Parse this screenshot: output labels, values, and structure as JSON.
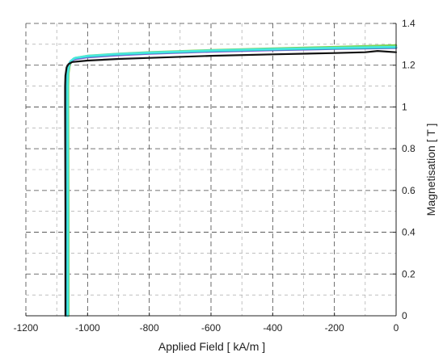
{
  "chart_data": {
    "type": "line",
    "xlabel": "Applied Field [ kA/m ]",
    "ylabel": "Magnetisation [ T ]",
    "xlim": [
      -1200,
      0
    ],
    "ylim": [
      0,
      1.4
    ],
    "x_ticks": [
      "-1200",
      "-1000",
      "-800",
      "-600",
      "-400",
      "-200",
      "0"
    ],
    "y_ticks": [
      "0",
      "0.2",
      "0.4",
      "0.6",
      "0.8",
      "1",
      "1.2",
      "1.4"
    ],
    "y_axis_side": "right",
    "grid": "dashed",
    "series": [
      {
        "color": "#79d357",
        "x": [
          -1062,
          -1062,
          -1063,
          -1063,
          -1062,
          -1058,
          -1052,
          -1040,
          -1000,
          -900,
          -800,
          -600,
          -400,
          -200,
          0
        ],
        "y": [
          0,
          0.5,
          1.0,
          1.1,
          1.16,
          1.2,
          1.22,
          1.235,
          1.245,
          1.255,
          1.262,
          1.272,
          1.28,
          1.287,
          1.295
        ]
      },
      {
        "color": "#8a5fd6",
        "x": [
          -1065,
          -1065,
          -1066,
          -1066,
          -1065,
          -1061,
          -1055,
          -1043,
          -1000,
          -900,
          -800,
          -600,
          -400,
          -200,
          0
        ],
        "y": [
          0,
          0.5,
          1.0,
          1.1,
          1.155,
          1.195,
          1.215,
          1.228,
          1.238,
          1.248,
          1.255,
          1.265,
          1.272,
          1.278,
          1.283
        ]
      },
      {
        "color": "#1aa3b8",
        "x": [
          -1066,
          -1066,
          -1067,
          -1067,
          -1066,
          -1062,
          -1056,
          -1044,
          -1000,
          -900,
          -800,
          -600,
          -400,
          -200,
          0
        ],
        "y": [
          0,
          0.5,
          1.0,
          1.1,
          1.158,
          1.198,
          1.218,
          1.232,
          1.242,
          1.252,
          1.258,
          1.268,
          1.275,
          1.28,
          1.285
        ]
      },
      {
        "color": "#48e8e0",
        "x": [
          -1064,
          -1064,
          -1065,
          -1065,
          -1064,
          -1060,
          -1054,
          -1042,
          -1000,
          -900,
          -800,
          -600,
          -400,
          -200,
          0
        ],
        "y": [
          0,
          0.5,
          1.0,
          1.1,
          1.16,
          1.2,
          1.22,
          1.234,
          1.244,
          1.254,
          1.26,
          1.27,
          1.277,
          1.283,
          1.288
        ]
      },
      {
        "color": "#111111",
        "x": [
          -1072,
          -1072,
          -1073,
          -1073,
          -1072,
          -1068,
          -1062,
          -1050,
          -1000,
          -900,
          -800,
          -600,
          -400,
          -200,
          -100,
          -60,
          0
        ],
        "y": [
          0,
          0.5,
          1.0,
          1.1,
          1.15,
          1.19,
          1.205,
          1.215,
          1.222,
          1.23,
          1.235,
          1.245,
          1.252,
          1.258,
          1.262,
          1.268,
          1.262
        ]
      }
    ]
  }
}
